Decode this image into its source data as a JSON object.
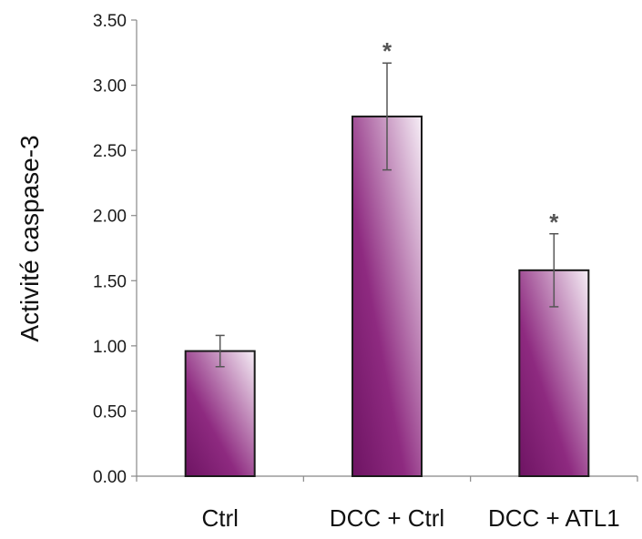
{
  "chart_data": {
    "type": "bar",
    "title": "",
    "xlabel": "",
    "ylabel": "Activité caspase-3",
    "categories": [
      "Ctrl",
      "DCC + Ctrl",
      "DCC + ATL1"
    ],
    "values": [
      0.96,
      2.76,
      1.58
    ],
    "error": [
      0.12,
      0.41,
      0.28
    ],
    "significance": [
      "",
      "*",
      "*"
    ],
    "ylim": [
      0,
      3.5
    ],
    "yticks": [
      "0.00",
      "0.50",
      "1.00",
      "1.50",
      "2.00",
      "2.50",
      "3.00",
      "3.50"
    ],
    "grid": false,
    "legend": "none",
    "colors": {
      "bar_dark": "#6e1463",
      "bar_mid": "#8e2a80",
      "bar_light": "#f6eef6",
      "bar_stroke": "#1a1a1a",
      "axis": "#888888",
      "error_bar": "#555555"
    }
  }
}
